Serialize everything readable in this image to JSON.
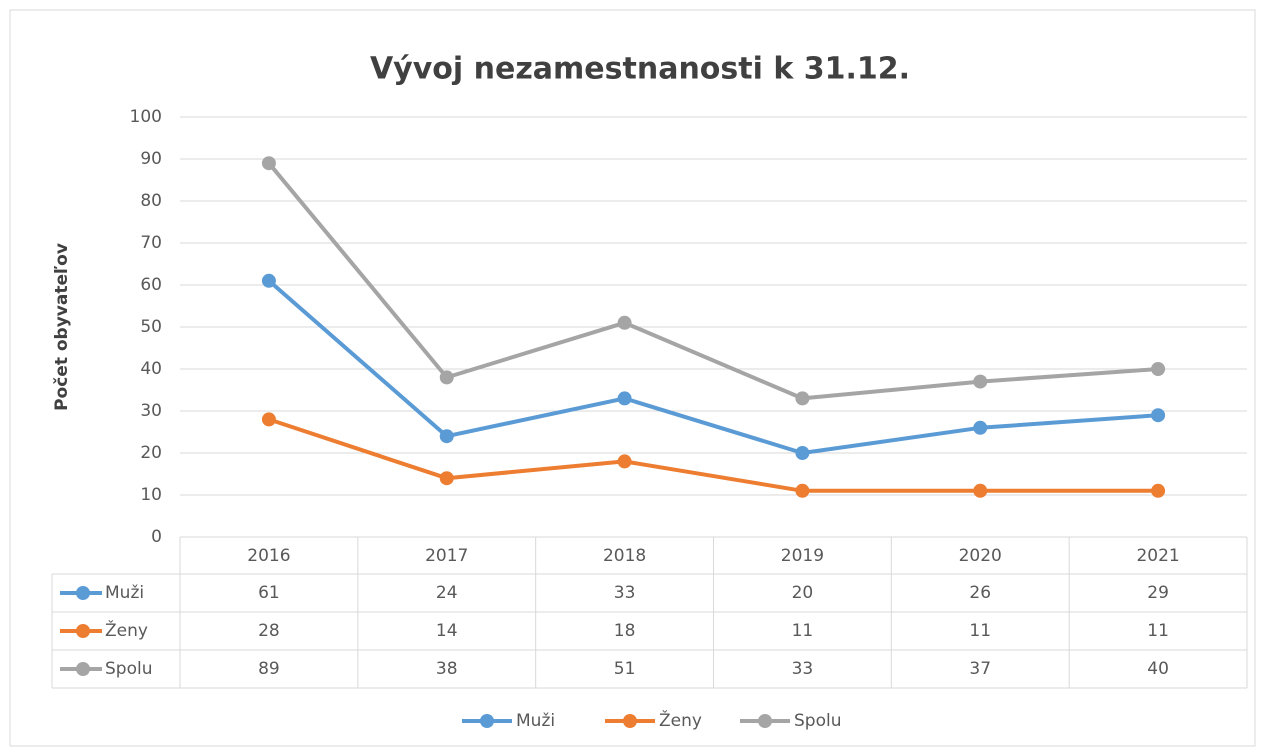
{
  "chart_data": {
    "type": "line",
    "title": "Vývoj nezamestnanosti k 31.12.",
    "y_axis_label": "Počet obyvateľov",
    "categories": [
      "2016",
      "2017",
      "2018",
      "2019",
      "2020",
      "2021"
    ],
    "series": [
      {
        "name": "Muži",
        "color": "#5b9bd5",
        "values": [
          61,
          24,
          33,
          20,
          26,
          29
        ]
      },
      {
        "name": "Ženy",
        "color": "#ed7d31",
        "values": [
          28,
          14,
          18,
          11,
          11,
          11
        ]
      },
      {
        "name": "Spolu",
        "color": "#a5a5a5",
        "values": [
          89,
          38,
          51,
          33,
          37,
          40
        ]
      }
    ],
    "ylim": [
      0,
      100
    ],
    "yticks": [
      0,
      10,
      20,
      30,
      40,
      50,
      60,
      70,
      80,
      90,
      100
    ],
    "grid": true,
    "data_table": true,
    "legend": "bottom"
  }
}
